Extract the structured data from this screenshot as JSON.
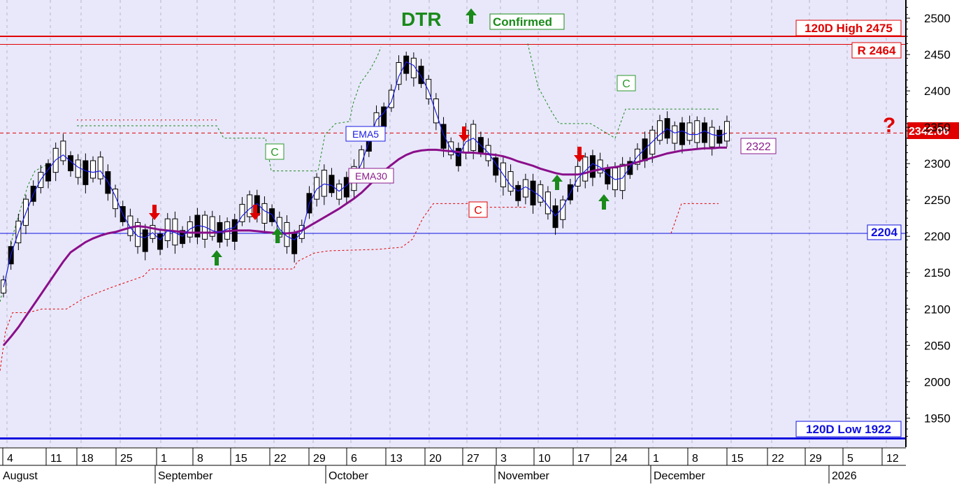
{
  "chart_data": {
    "type": "candlestick",
    "title": "DTR",
    "title_status": "Confirmed",
    "y_axis": {
      "min": 1910,
      "max": 2525,
      "ticks": [
        1950,
        2000,
        2050,
        2100,
        2150,
        2200,
        2250,
        2300,
        2350,
        2400,
        2450,
        2500
      ]
    },
    "x_axis": {
      "day_ticks": [
        "4",
        "11",
        "18",
        "25",
        "1",
        "8",
        "15",
        "22",
        "29",
        "6",
        "13",
        "20",
        "27",
        "3",
        "10",
        "17",
        "24",
        "1",
        "8",
        "15",
        "22",
        "29",
        "5",
        "12"
      ],
      "month_labels": [
        "August",
        "September",
        "October",
        "November",
        "December",
        "2026"
      ]
    },
    "levels": {
      "high_120d": {
        "label": "120D High 2475",
        "value": 2475,
        "color": "#e00000"
      },
      "resistance": {
        "label": "R 2464",
        "value": 2464,
        "color": "#e00000"
      },
      "support": {
        "label": "2204",
        "value": 2204,
        "color": "#1010e0"
      },
      "low_120d": {
        "label": "120D Low 1922",
        "value": 1922,
        "color": "#1010e0"
      },
      "last_price": {
        "label": "2342.06",
        "value": 2342.06,
        "color": "#e00000"
      },
      "ema30_value": {
        "label": "2322",
        "value": 2322,
        "color": "#8b1a8b"
      }
    },
    "series": [
      {
        "name": "EMA5",
        "color": "#1a1ae6",
        "values": [
          2130,
          2175,
          2205,
          2232,
          2258,
          2278,
          2292,
          2305,
          2312,
          2303,
          2295,
          2290,
          2288,
          2290,
          2275,
          2255,
          2230,
          2212,
          2200,
          2198,
          2205,
          2195,
          2208,
          2205,
          2200,
          2210,
          2215,
          2213,
          2208,
          2205,
          2210,
          2212,
          2228,
          2238,
          2245,
          2235,
          2230,
          2210,
          2200,
          2195,
          2205,
          2245,
          2265,
          2272,
          2270,
          2262,
          2270,
          2280,
          2300,
          2330,
          2360,
          2370,
          2385,
          2420,
          2440,
          2435,
          2420,
          2400,
          2370,
          2340,
          2320,
          2310,
          2330,
          2335,
          2325,
          2315,
          2300,
          2285,
          2270,
          2262,
          2268,
          2262,
          2255,
          2242,
          2228,
          2240,
          2260,
          2280,
          2290,
          2300,
          2295,
          2285,
          2278,
          2280,
          2295,
          2310,
          2320,
          2330,
          2340,
          2348,
          2342,
          2345,
          2340,
          2340,
          2345,
          2340,
          2338,
          2342
        ]
      },
      {
        "name": "EMA30",
        "color": "#8a0f8a",
        "values": [
          2050,
          2062,
          2075,
          2090,
          2105,
          2120,
          2135,
          2150,
          2165,
          2178,
          2185,
          2192,
          2197,
          2201,
          2204,
          2206,
          2209,
          2212,
          2214,
          2213,
          2211,
          2209,
          2208,
          2207,
          2206,
          2205,
          2205,
          2205,
          2205,
          2206,
          2207,
          2208,
          2208,
          2208,
          2207,
          2206,
          2205,
          2204,
          2204,
          2205,
          2208,
          2214,
          2220,
          2226,
          2232,
          2238,
          2245,
          2252,
          2260,
          2270,
          2280,
          2290,
          2298,
          2306,
          2312,
          2316,
          2318,
          2319,
          2319,
          2318,
          2317,
          2316,
          2315,
          2315,
          2314,
          2313,
          2312,
          2310,
          2307,
          2303,
          2300,
          2297,
          2293,
          2290,
          2287,
          2285,
          2285,
          2285,
          2287,
          2290,
          2292,
          2294,
          2295,
          2297,
          2299,
          2302,
          2305,
          2308,
          2311,
          2314,
          2316,
          2318,
          2319,
          2320,
          2321,
          2321,
          2322,
          2322
        ]
      }
    ],
    "annotations": [
      {
        "text": "EMA5"
      },
      {
        "text": "EMA30"
      },
      {
        "text": "C",
        "color": "#2a9a2a"
      },
      {
        "text": "C",
        "color": "#2a9a2a"
      },
      {
        "text": "C",
        "color": "#e00000"
      },
      {
        "text": "?",
        "color": "#e00000"
      }
    ]
  }
}
